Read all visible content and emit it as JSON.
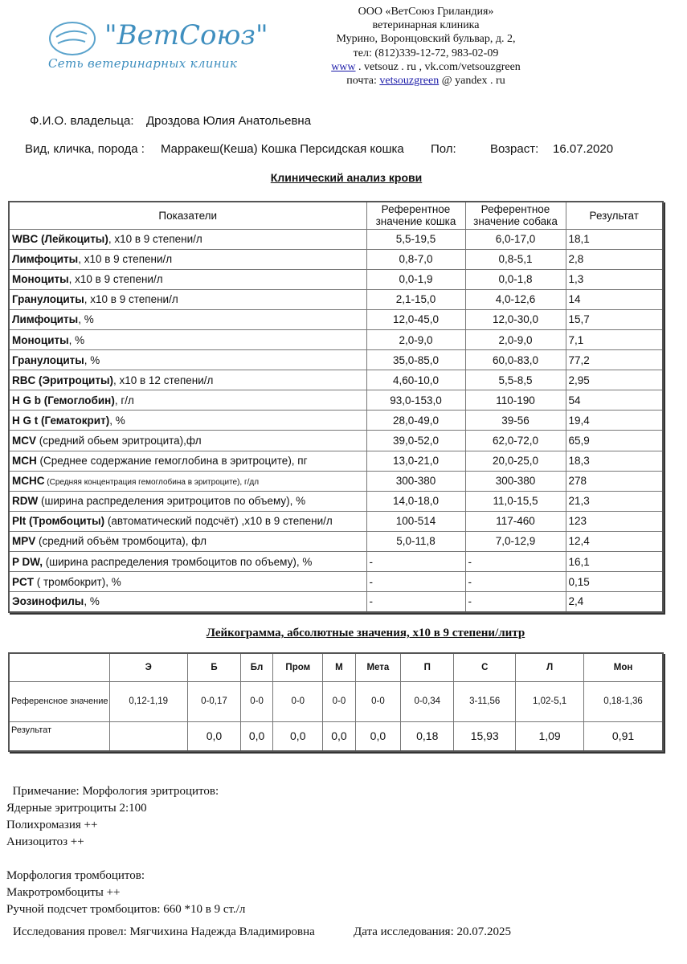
{
  "logo": {
    "main": "\"ВетСоюз\"",
    "sub": "Сеть ветеринарных клиник"
  },
  "clinic": {
    "name": "ООО «ВетСоюз Гриландия»",
    "type": "ветеринарная клиника",
    "address": "Мурино, Воронцовский бульвар, д. 2,",
    "phone": "тел: (812)339-12-72, 983-02-09",
    "www": "www",
    "site_rest": " . vetsouz . ru , vk.com/vetsouzgreen",
    "mail_label": "почта: ",
    "mail_user": "vetsouzgreen",
    "mail_rest": " @ yandex . ru"
  },
  "owner": {
    "label": "Ф.И.О. владельца:",
    "value": "Дроздова Юлия Анатольевна"
  },
  "pet": {
    "label": "Вид, кличка, порода :",
    "value": "Марракеш(Кеша) Кошка Персидская кошка",
    "sex_label": "Пол:",
    "age_label": "Возраст:",
    "age_value": "16.07.2020"
  },
  "title": "Клинический анализ крови",
  "table1": {
    "headers": [
      "Показатели",
      "Референтное значение кошка",
      "Референтное значение собака",
      "Результат"
    ],
    "rows": [
      {
        "b": "WBC (Лейкоциты)",
        "r": ", х10 в 9 степени/л",
        "cat": "5,5-19,5",
        "dog": "6,0-17,0",
        "res": "18,1"
      },
      {
        "b": "Лимфоциты",
        "r": ", х10 в 9 степени/л",
        "cat": "0,8-7,0",
        "dog": "0,8-5,1",
        "res": "2,8"
      },
      {
        "b": "Моноциты",
        "r": ", х10 в 9 степени/л",
        "cat": "0,0-1,9",
        "dog": "0,0-1,8",
        "res": "1,3"
      },
      {
        "b": "Гранулоциты",
        "r": ", х10 в 9 степени/л",
        "cat": "2,1-15,0",
        "dog": "4,0-12,6",
        "res": "14"
      },
      {
        "b": "Лимфоциты",
        "r": ", %",
        "cat": "12,0-45,0",
        "dog": "12,0-30,0",
        "res": "15,7"
      },
      {
        "b": "Моноциты",
        "r": ", %",
        "cat": "2,0-9,0",
        "dog": "2,0-9,0",
        "res": "7,1"
      },
      {
        "b": "Гранулоциты",
        "r": ", %",
        "cat": "35,0-85,0",
        "dog": "60,0-83,0",
        "res": "77,2"
      },
      {
        "b": "RBC (Эритроциты)",
        "r": ", х10 в 12 степени/л",
        "cat": "4,60-10,0",
        "dog": "5,5-8,5",
        "res": "2,95"
      },
      {
        "b": "H G b (Гемоглобин)",
        "r": ", г/л",
        "cat": "93,0-153,0",
        "dog": "110-190",
        "res": "54"
      },
      {
        "b": "H G t (Гематокрит)",
        "r": ", %",
        "cat": "28,0-49,0",
        "dog": "39-56",
        "res": "19,4"
      },
      {
        "b": "MCV",
        "r": " (средний обьем эритроцита),фл",
        "cat": "39,0-52,0",
        "dog": "62,0-72,0",
        "res": "65,9"
      },
      {
        "b": "MCH",
        "r": " (Среднее содержание гемоглобина в эритроците), пг",
        "cat": "13,0-21,0",
        "dog": "20,0-25,0",
        "res": "18,3"
      },
      {
        "b": "MCHC",
        "r": " (Средняя концентрация гемоглобина в эритроците), г/дл",
        "small": true,
        "cat": "300-380",
        "dog": "300-380",
        "res": "278"
      },
      {
        "b": "RDW",
        "r": " (ширина распределения эритроцитов по объему), %",
        "cat": "14,0-18,0",
        "dog": "11,0-15,5",
        "res": "21,3"
      },
      {
        "b": "Plt (Тромбоциты)",
        "r": " (автоматический подсчёт) ,х10 в 9 степени/л",
        "cat": "100-514",
        "dog": "117-460",
        "res": "123"
      },
      {
        "b": "MPV",
        "r": " (средний объём тромбоцита), фл",
        "cat": "5,0-11,8",
        "dog": "7,0-12,9",
        "res": "12,4"
      },
      {
        "b": "P DW,",
        "r": " (ширина распределения тромбоцитов по объему), %",
        "cat": "-",
        "dog": "-",
        "res": "16,1",
        "left": true
      },
      {
        "b": "PCT",
        "r": " ( тромбокрит), %",
        "cat": "-",
        "dog": "-",
        "res": "0,15",
        "left": true
      },
      {
        "b": "Эозинофилы",
        "r": ", %",
        "cat": "-",
        "dog": "-",
        "res": "2,4",
        "left": true
      }
    ]
  },
  "leukogram": {
    "title": "Лейкограмма, абсолютные значения, х10 в 9 степени/литр",
    "headers": [
      "Э",
      "Б",
      "Бл",
      "Пром",
      "М",
      "Мета",
      "П",
      "С",
      "Л",
      "Мон"
    ],
    "ref_label": "Референсное значение",
    "ref": [
      "0,12-1,19",
      "0-0,17",
      "0-0",
      "0-0",
      "0-0",
      "0-0",
      "0-0,34",
      "3-11,56",
      "1,02-5,1",
      "0,18-1,36"
    ],
    "res_label": "Результат",
    "res": [
      "",
      "0,0",
      "0,0",
      "0,0",
      "0,0",
      "0,0",
      "0,18",
      "15,93",
      "1,09",
      "0,91"
    ]
  },
  "notes": [
    "  Примечание: Морфология эритроцитов:",
    "Ядерные эритроциты 2:100",
    "Полихромазия ++",
    "Анизоцитоз ++",
    "",
    "Морфология тромбоцитов:",
    "Макротромбоциты ++",
    "Ручной подсчет тромбоцитов: 660 *10 в 9 ст./л"
  ],
  "footer": {
    "performer": "Исследования провел: Мягчихина Надежда Владимировна",
    "date": "Дата исследования: 20.07.2025"
  }
}
